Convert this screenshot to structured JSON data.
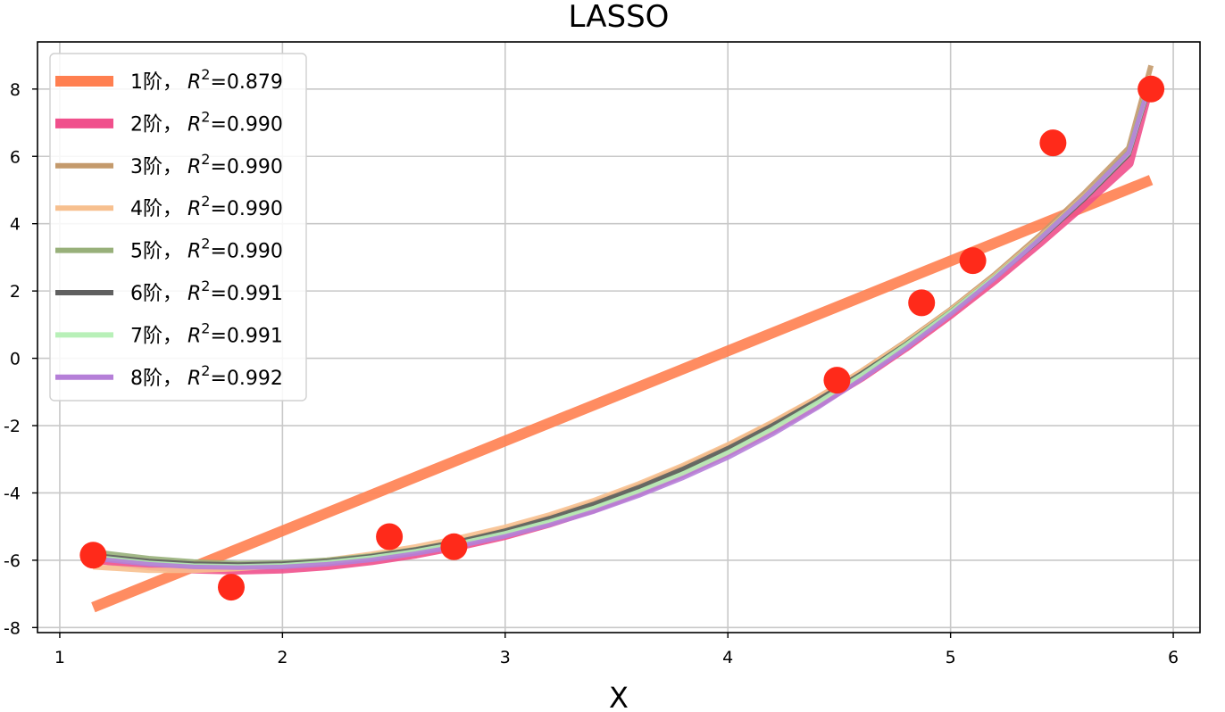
{
  "chart_data": {
    "type": "line",
    "title": "LASSO",
    "xlabel": "X",
    "ylabel": "",
    "xlim": [
      0.9,
      6.12
    ],
    "ylim": [
      -8.15,
      9.4
    ],
    "xticks": [
      1,
      2,
      3,
      4,
      5,
      6
    ],
    "yticks": [
      -8,
      -6,
      -4,
      -2,
      0,
      2,
      4,
      6,
      8
    ],
    "xtick_labels": [
      "1",
      "2",
      "3",
      "4",
      "5",
      "6"
    ],
    "ytick_labels": [
      "-8",
      "-6",
      "-4",
      "-2",
      "0",
      "2",
      "4",
      "6",
      "8"
    ],
    "grid": true,
    "legend_position": "upper-left",
    "points": {
      "color": "#ff2a1a",
      "x": [
        1.15,
        1.77,
        2.48,
        2.77,
        4.49,
        4.87,
        5.1,
        5.46,
        5.9
      ],
      "y": [
        -5.85,
        -6.8,
        -5.3,
        -5.6,
        -0.65,
        1.65,
        2.9,
        6.4,
        8.0
      ]
    },
    "series": [
      {
        "name": "1阶, R²=0.879",
        "label_prefix": "1阶，",
        "label_value": "=0.879",
        "color": "#ff7f50",
        "width": 12,
        "x": [
          1.15,
          5.9
        ],
        "y": [
          -7.4,
          5.3
        ]
      },
      {
        "name": "2阶, R²=0.990",
        "label_prefix": "2阶，",
        "label_value": "=0.990",
        "color": "#f0508c",
        "width": 11,
        "x": [
          1.15,
          1.4,
          1.6,
          1.8,
          2.0,
          2.2,
          2.4,
          2.6,
          2.8,
          3.0,
          3.2,
          3.4,
          3.6,
          3.8,
          4.0,
          4.2,
          4.4,
          4.6,
          4.8,
          5.0,
          5.2,
          5.4,
          5.6,
          5.8,
          5.9
        ],
        "y": [
          -5.95,
          -6.15,
          -6.25,
          -6.28,
          -6.25,
          -6.15,
          -6.0,
          -5.8,
          -5.55,
          -5.25,
          -4.88,
          -4.45,
          -3.95,
          -3.4,
          -2.78,
          -2.1,
          -1.35,
          -0.55,
          0.35,
          1.32,
          2.35,
          3.45,
          4.6,
          5.8,
          8.3
        ]
      },
      {
        "name": "3阶, R²=0.990",
        "label_prefix": "3阶，",
        "label_value": "=0.990",
        "color": "#c49a6c",
        "width": 6,
        "x": [
          1.15,
          1.4,
          1.6,
          1.8,
          2.0,
          2.2,
          2.4,
          2.6,
          2.8,
          3.0,
          3.2,
          3.4,
          3.6,
          3.8,
          4.0,
          4.2,
          4.4,
          4.6,
          4.8,
          5.0,
          5.2,
          5.4,
          5.6,
          5.8,
          5.9
        ],
        "y": [
          -5.9,
          -6.05,
          -6.15,
          -6.18,
          -6.15,
          -6.05,
          -5.9,
          -5.68,
          -5.42,
          -5.1,
          -4.72,
          -4.28,
          -3.78,
          -3.22,
          -2.6,
          -1.92,
          -1.18,
          -0.38,
          0.5,
          1.45,
          2.5,
          3.65,
          4.9,
          6.25,
          8.7
        ]
      },
      {
        "name": "4阶, R²=0.990",
        "label_prefix": "4阶，",
        "label_value": "=0.990",
        "color": "#f7c08f",
        "width": 6,
        "x": [
          1.15,
          1.4,
          1.6,
          1.8,
          2.0,
          2.2,
          2.4,
          2.6,
          2.8,
          3.0,
          3.2,
          3.4,
          3.6,
          3.8,
          4.0,
          4.2,
          4.4,
          4.6,
          4.8,
          5.0,
          5.2,
          5.4,
          5.6,
          5.8,
          5.9
        ],
        "y": [
          -6.2,
          -6.3,
          -6.3,
          -6.25,
          -6.15,
          -6.0,
          -5.82,
          -5.6,
          -5.33,
          -5.02,
          -4.65,
          -4.22,
          -3.73,
          -3.18,
          -2.57,
          -1.9,
          -1.17,
          -0.38,
          0.48,
          1.42,
          2.45,
          3.58,
          4.8,
          6.1,
          8.4
        ]
      },
      {
        "name": "5阶, R²=0.990",
        "label_prefix": "5阶，",
        "label_value": "=0.990",
        "color": "#98b07a",
        "width": 6,
        "x": [
          1.15,
          1.4,
          1.6,
          1.8,
          2.0,
          2.2,
          2.4,
          2.6,
          2.8,
          3.0,
          3.2,
          3.4,
          3.6,
          3.8,
          4.0,
          4.2,
          4.4,
          4.6,
          4.8,
          5.0,
          5.2,
          5.4,
          5.6,
          5.8,
          5.9
        ],
        "y": [
          -5.75,
          -5.95,
          -6.05,
          -6.1,
          -6.08,
          -6.0,
          -5.87,
          -5.68,
          -5.44,
          -5.14,
          -4.78,
          -4.36,
          -3.87,
          -3.32,
          -2.7,
          -2.02,
          -1.27,
          -0.46,
          0.42,
          1.38,
          2.42,
          3.55,
          4.78,
          6.12,
          8.35
        ]
      },
      {
        "name": "6阶, R²=0.991",
        "label_prefix": "6阶，",
        "label_value": "=0.991",
        "color": "#606060",
        "width": 5,
        "x": [
          1.15,
          1.4,
          1.6,
          1.8,
          2.0,
          2.2,
          2.4,
          2.6,
          2.8,
          3.0,
          3.2,
          3.4,
          3.6,
          3.8,
          4.0,
          4.2,
          4.4,
          4.6,
          4.8,
          5.0,
          5.2,
          5.4,
          5.6,
          5.8,
          5.9
        ],
        "y": [
          -5.85,
          -6.02,
          -6.1,
          -6.13,
          -6.1,
          -6.02,
          -5.88,
          -5.68,
          -5.43,
          -5.12,
          -4.75,
          -4.32,
          -3.83,
          -3.28,
          -2.67,
          -1.99,
          -1.25,
          -0.45,
          0.42,
          1.37,
          2.4,
          3.52,
          4.73,
          6.05,
          8.2
        ]
      },
      {
        "name": "7阶, R²=0.991",
        "label_prefix": "7阶，",
        "label_value": "=0.991",
        "color": "#b8f0b8",
        "width": 5,
        "x": [
          1.15,
          1.4,
          1.6,
          1.8,
          2.0,
          2.2,
          2.4,
          2.6,
          2.8,
          3.0,
          3.2,
          3.4,
          3.6,
          3.8,
          4.0,
          4.2,
          4.4,
          4.6,
          4.8,
          5.0,
          5.2,
          5.4,
          5.6,
          5.8,
          5.9
        ],
        "y": [
          -5.9,
          -6.08,
          -6.16,
          -6.18,
          -6.15,
          -6.06,
          -5.92,
          -5.73,
          -5.49,
          -5.2,
          -4.85,
          -4.44,
          -3.96,
          -3.42,
          -2.8,
          -2.1,
          -1.33,
          -0.5,
          0.4,
          1.37,
          2.42,
          3.55,
          4.77,
          6.1,
          8.25
        ]
      },
      {
        "name": "8阶, R²=0.992",
        "label_prefix": "8阶，",
        "label_value": "=0.992",
        "color": "#b57fd8",
        "width": 5,
        "x": [
          1.15,
          1.4,
          1.6,
          1.8,
          2.0,
          2.2,
          2.4,
          2.6,
          2.8,
          3.0,
          3.2,
          3.4,
          3.6,
          3.8,
          4.0,
          4.2,
          4.4,
          4.6,
          4.8,
          5.0,
          5.2,
          5.4,
          5.6,
          5.8,
          5.9
        ],
        "y": [
          -5.95,
          -6.12,
          -6.2,
          -6.22,
          -6.2,
          -6.12,
          -5.99,
          -5.8,
          -5.57,
          -5.29,
          -4.95,
          -4.55,
          -4.08,
          -3.55,
          -2.95,
          -2.26,
          -1.48,
          -0.62,
          0.3,
          1.3,
          2.38,
          3.54,
          4.78,
          6.12,
          8.3
        ]
      }
    ]
  }
}
